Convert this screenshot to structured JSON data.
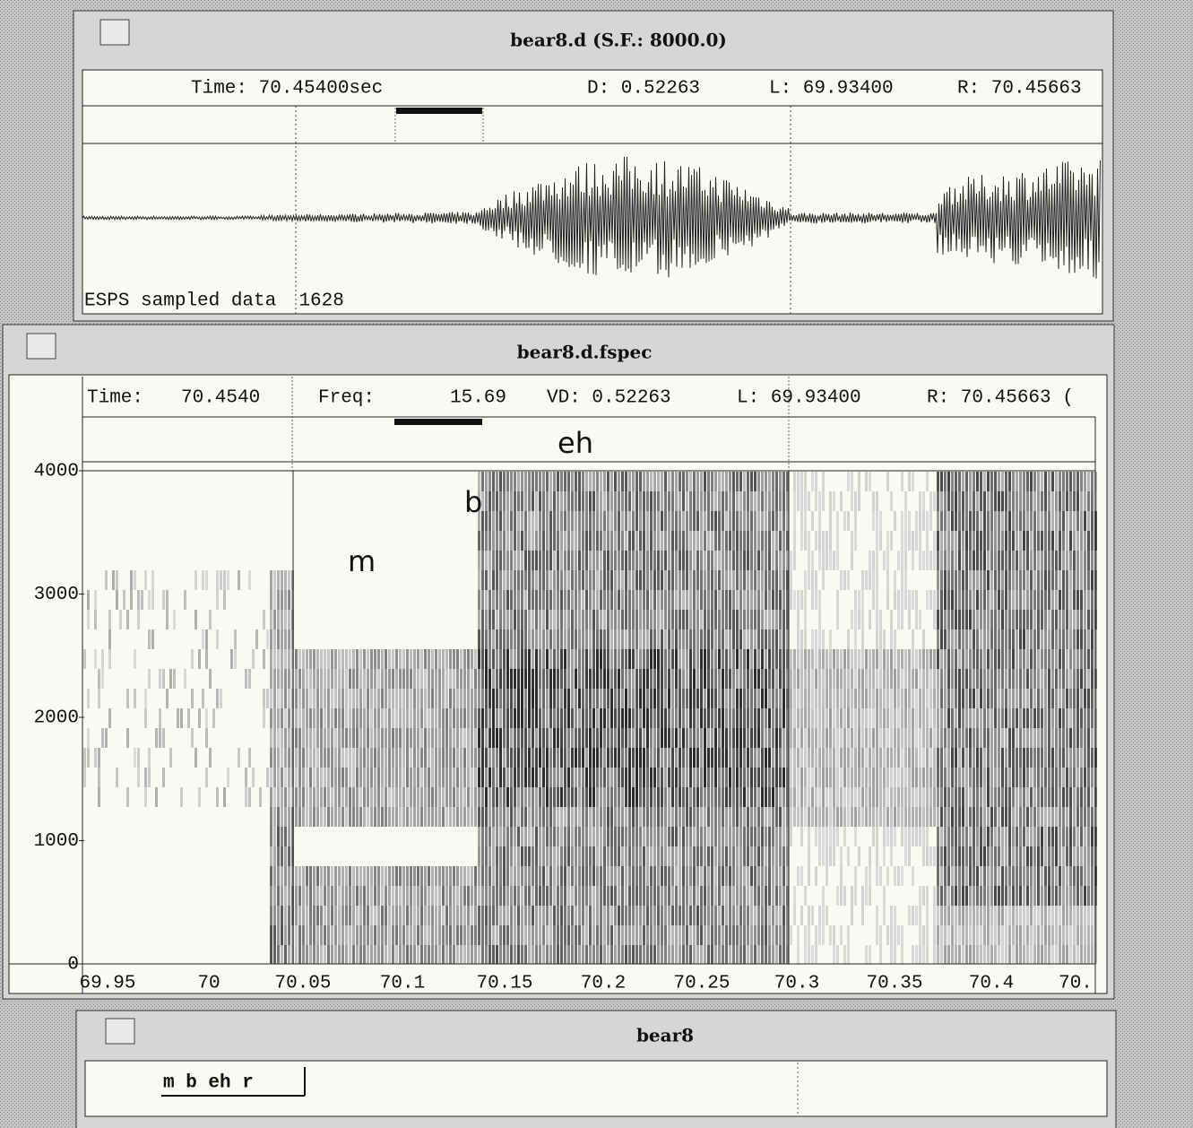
{
  "waveform_window": {
    "title": "bear8.d (S.F.: 8000.0)",
    "time": "Time: 70.45400sec",
    "duration": "D: 0.52263",
    "left": "L: 69.93400",
    "right": "R: 70.45663",
    "footer": "ESPS sampled data  1628"
  },
  "spectrogram_window": {
    "title": "bear8.d.fspec",
    "time_label": "Time:",
    "time": "70.4540",
    "freq_label": "Freq:",
    "freq": "15.69",
    "duration": "VD: 0.52263",
    "left": "L: 69.93400",
    "right": "R: 70.45663 (",
    "y_ticks": [
      "4000",
      "3000",
      "2000",
      "1000",
      "0"
    ],
    "x_ticks": [
      "69.95",
      "70",
      "70.05",
      "70.1",
      "70.15",
      "70.2",
      "70.25",
      "70.3",
      "70.35",
      "70.4",
      "70."
    ],
    "annotations": [
      "eh",
      "b",
      "m"
    ]
  },
  "label_window": {
    "title": "bear8",
    "labels": "m b eh r"
  }
}
